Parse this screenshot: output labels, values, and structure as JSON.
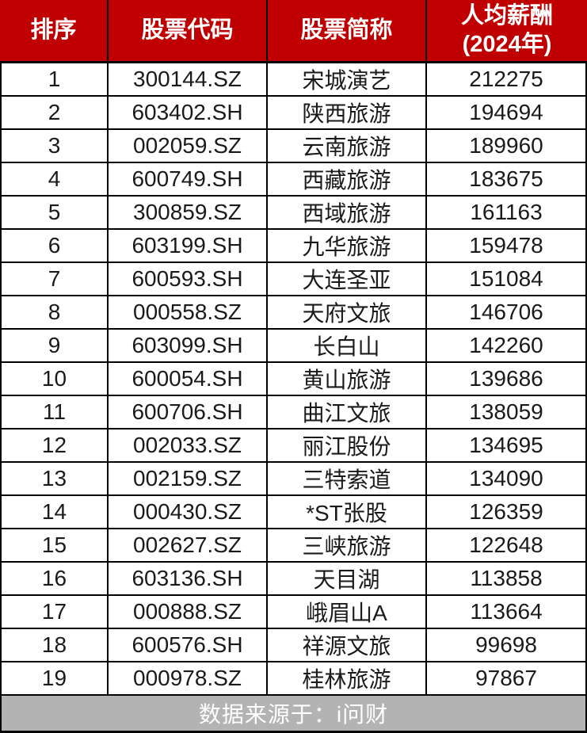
{
  "table": {
    "headers": {
      "rank": "排序",
      "code": "股票代码",
      "name": "股票简称",
      "salary_line1": "人均薪酬",
      "salary_line2": "(2024年)"
    },
    "rows": [
      {
        "rank": "1",
        "code": "300144.SZ",
        "name": "宋城演艺",
        "salary": "212275"
      },
      {
        "rank": "2",
        "code": "603402.SH",
        "name": "陕西旅游",
        "salary": "194694"
      },
      {
        "rank": "3",
        "code": "002059.SZ",
        "name": "云南旅游",
        "salary": "189960"
      },
      {
        "rank": "4",
        "code": "600749.SH",
        "name": "西藏旅游",
        "salary": "183675"
      },
      {
        "rank": "5",
        "code": "300859.SZ",
        "name": "西域旅游",
        "salary": "161163"
      },
      {
        "rank": "6",
        "code": "603199.SH",
        "name": "九华旅游",
        "salary": "159478"
      },
      {
        "rank": "7",
        "code": "600593.SH",
        "name": "大连圣亚",
        "salary": "151084"
      },
      {
        "rank": "8",
        "code": "000558.SZ",
        "name": "天府文旅",
        "salary": "146706"
      },
      {
        "rank": "9",
        "code": "603099.SH",
        "name": "长白山",
        "salary": "142260"
      },
      {
        "rank": "10",
        "code": "600054.SH",
        "name": "黄山旅游",
        "salary": "139686"
      },
      {
        "rank": "11",
        "code": "600706.SH",
        "name": "曲江文旅",
        "salary": "138059"
      },
      {
        "rank": "12",
        "code": "002033.SZ",
        "name": "丽江股份",
        "salary": "134695"
      },
      {
        "rank": "13",
        "code": "002159.SZ",
        "name": "三特索道",
        "salary": "134090"
      },
      {
        "rank": "14",
        "code": "000430.SZ",
        "name": "*ST张股",
        "salary": "126359"
      },
      {
        "rank": "15",
        "code": "002627.SZ",
        "name": "三峡旅游",
        "salary": "122648"
      },
      {
        "rank": "16",
        "code": "603136.SH",
        "name": "天目湖",
        "salary": "113858"
      },
      {
        "rank": "17",
        "code": "000888.SZ",
        "name": "峨眉山A",
        "salary": "113664"
      },
      {
        "rank": "18",
        "code": "600576.SH",
        "name": "祥源文旅",
        "salary": "99698"
      },
      {
        "rank": "19",
        "code": "000978.SZ",
        "name": "桂林旅游",
        "salary": "97867"
      }
    ]
  },
  "footer": {
    "source_label": "数据来源于：i问财"
  },
  "colors": {
    "header_bg": "#C00000",
    "header_text": "#FFFFFF",
    "body_bg": "#FFFFFF",
    "body_text": "#1A1A1A",
    "grid_border": "#000000",
    "footer_bg": "#B3B3B3",
    "footer_text": "#FFFFFF"
  },
  "chart_data": {
    "type": "table",
    "title": "人均薪酬(2024年)排行",
    "columns": [
      "排序",
      "股票代码",
      "股票简称",
      "人均薪酬(2024年)"
    ],
    "rows": [
      [
        1,
        "300144.SZ",
        "宋城演艺",
        212275
      ],
      [
        2,
        "603402.SH",
        "陕西旅游",
        194694
      ],
      [
        3,
        "002059.SZ",
        "云南旅游",
        189960
      ],
      [
        4,
        "600749.SH",
        "西藏旅游",
        183675
      ],
      [
        5,
        "300859.SZ",
        "西域旅游",
        161163
      ],
      [
        6,
        "603199.SH",
        "九华旅游",
        159478
      ],
      [
        7,
        "600593.SH",
        "大连圣亚",
        151084
      ],
      [
        8,
        "000558.SZ",
        "天府文旅",
        146706
      ],
      [
        9,
        "603099.SH",
        "长白山",
        142260
      ],
      [
        10,
        "600054.SH",
        "黄山旅游",
        139686
      ],
      [
        11,
        "600706.SH",
        "曲江文旅",
        138059
      ],
      [
        12,
        "002033.SZ",
        "丽江股份",
        134695
      ],
      [
        13,
        "002159.SZ",
        "三特索道",
        134090
      ],
      [
        14,
        "000430.SZ",
        "*ST张股",
        126359
      ],
      [
        15,
        "002627.SZ",
        "三峡旅游",
        122648
      ],
      [
        16,
        "603136.SH",
        "天目湖",
        113858
      ],
      [
        17,
        "000888.SZ",
        "峨眉山A",
        113664
      ],
      [
        18,
        "600576.SH",
        "祥源文旅",
        99698
      ],
      [
        19,
        "000978.SZ",
        "桂林旅游",
        97867
      ]
    ],
    "source": "数据来源于：i问财"
  }
}
